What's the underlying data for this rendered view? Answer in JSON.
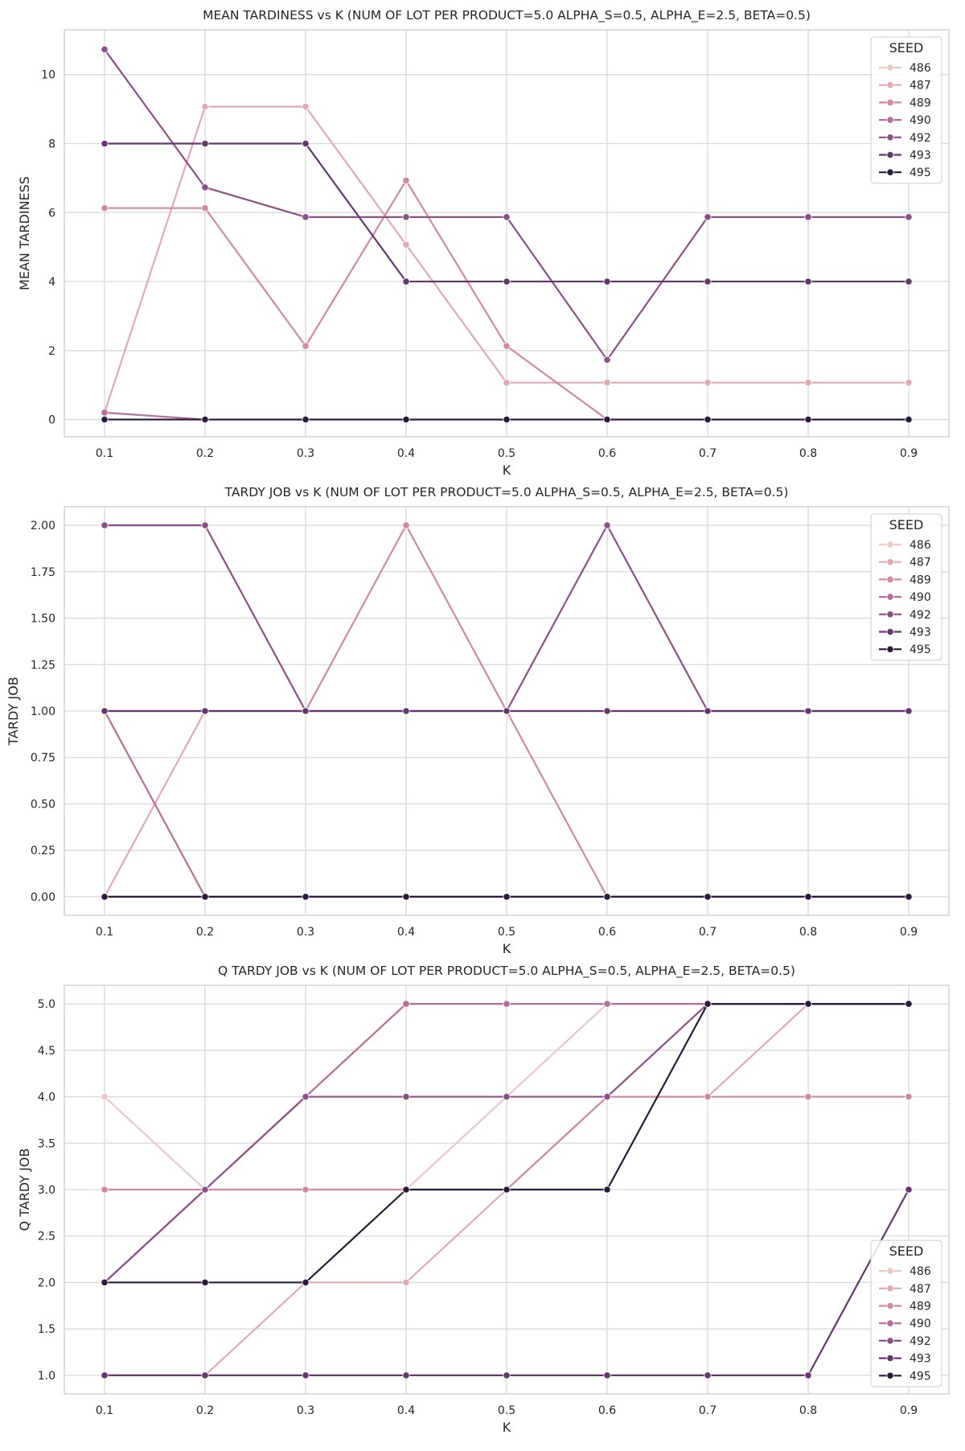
{
  "legend_title": "SEED",
  "series_colors": [
    "#ebc8c4",
    "#e0aab0",
    "#cf8aa0",
    "#b46e98",
    "#8c5088",
    "#64376e",
    "#2a1b3e"
  ],
  "chart_data": [
    {
      "type": "line",
      "title": "MEAN TARDINESS vs K (NUM OF LOT PER PRODUCT=5.0 ALPHA_S=0.5, ALPHA_E=2.5, BETA=0.5)",
      "xlabel": "K",
      "ylabel": "MEAN TARDINESS",
      "x": [
        0.1,
        0.2,
        0.3,
        0.4,
        0.5,
        0.6,
        0.7,
        0.8,
        0.9
      ],
      "x_ticks": [
        "0.1",
        "0.2",
        "0.3",
        "0.4",
        "0.5",
        "0.6",
        "0.7",
        "0.8",
        "0.9"
      ],
      "xlim": [
        0.06,
        0.94
      ],
      "y_ticks": [
        "0",
        "2",
        "4",
        "6",
        "8",
        "10"
      ],
      "ylim": [
        -0.5,
        11.3
      ],
      "grid": true,
      "legend_position": "top-right",
      "series": [
        {
          "name": "486",
          "values": [
            0,
            0,
            0,
            0,
            0,
            0,
            0,
            0,
            0
          ]
        },
        {
          "name": "487",
          "values": [
            0.2,
            9.07,
            9.07,
            5.07,
            1.07,
            1.07,
            1.07,
            1.07,
            1.07
          ]
        },
        {
          "name": "489",
          "values": [
            6.13,
            6.13,
            2.13,
            6.93,
            2.13,
            0,
            0,
            0,
            0
          ]
        },
        {
          "name": "490",
          "values": [
            0.2,
            0,
            0,
            0,
            0,
            0,
            0,
            0,
            0
          ]
        },
        {
          "name": "492",
          "values": [
            10.73,
            6.73,
            5.87,
            5.87,
            5.87,
            1.73,
            5.87,
            5.87,
            5.87
          ]
        },
        {
          "name": "493",
          "values": [
            8,
            8,
            8,
            4,
            4,
            4,
            4,
            4,
            4
          ]
        },
        {
          "name": "495",
          "values": [
            0,
            0,
            0,
            0,
            0,
            0,
            0,
            0,
            0
          ]
        }
      ]
    },
    {
      "type": "line",
      "title": "TARDY JOB vs K (NUM OF LOT PER PRODUCT=5.0 ALPHA_S=0.5, ALPHA_E=2.5, BETA=0.5)",
      "xlabel": "K",
      "ylabel": "TARDY JOB",
      "x": [
        0.1,
        0.2,
        0.3,
        0.4,
        0.5,
        0.6,
        0.7,
        0.8,
        0.9
      ],
      "x_ticks": [
        "0.1",
        "0.2",
        "0.3",
        "0.4",
        "0.5",
        "0.6",
        "0.7",
        "0.8",
        "0.9"
      ],
      "xlim": [
        0.06,
        0.94
      ],
      "y_ticks": [
        "0.00",
        "0.25",
        "0.50",
        "0.75",
        "1.00",
        "1.25",
        "1.50",
        "1.75",
        "2.00"
      ],
      "ylim": [
        -0.1,
        2.1
      ],
      "grid": true,
      "legend_position": "top-right",
      "series": [
        {
          "name": "486",
          "values": [
            0,
            0,
            0,
            0,
            0,
            0,
            0,
            0,
            0
          ]
        },
        {
          "name": "487",
          "values": [
            0,
            1,
            1,
            1,
            1,
            1,
            1,
            1,
            1
          ]
        },
        {
          "name": "489",
          "values": [
            1,
            1,
            1,
            2,
            1,
            0,
            0,
            0,
            0
          ]
        },
        {
          "name": "490",
          "values": [
            1,
            0,
            0,
            0,
            0,
            0,
            0,
            0,
            0
          ]
        },
        {
          "name": "492",
          "values": [
            2,
            2,
            1,
            1,
            1,
            2,
            1,
            1,
            1
          ]
        },
        {
          "name": "493",
          "values": [
            1,
            1,
            1,
            1,
            1,
            1,
            1,
            1,
            1
          ]
        },
        {
          "name": "495",
          "values": [
            0,
            0,
            0,
            0,
            0,
            0,
            0,
            0,
            0
          ]
        }
      ]
    },
    {
      "type": "line",
      "title": "Q TARDY JOB vs K (NUM OF LOT PER PRODUCT=5.0 ALPHA_S=0.5, ALPHA_E=2.5, BETA=0.5)",
      "xlabel": "K",
      "ylabel": "Q TARDY JOB",
      "x": [
        0.1,
        0.2,
        0.3,
        0.4,
        0.5,
        0.6,
        0.7,
        0.8,
        0.9
      ],
      "x_ticks": [
        "0.1",
        "0.2",
        "0.3",
        "0.4",
        "0.5",
        "0.6",
        "0.7",
        "0.8",
        "0.9"
      ],
      "xlim": [
        0.06,
        0.94
      ],
      "y_ticks": [
        "1.0",
        "1.5",
        "2.0",
        "2.5",
        "3.0",
        "3.5",
        "4.0",
        "4.5",
        "5.0"
      ],
      "ylim": [
        0.8,
        5.2
      ],
      "grid": true,
      "legend_position": "lower-right",
      "series": [
        {
          "name": "486",
          "values": [
            4,
            3,
            3,
            3,
            4,
            5,
            5,
            5,
            5
          ]
        },
        {
          "name": "487",
          "values": [
            1,
            1,
            2,
            2,
            3,
            4,
            4,
            5,
            5
          ]
        },
        {
          "name": "489",
          "values": [
            3,
            3,
            3,
            3,
            3,
            4,
            4,
            4,
            4
          ]
        },
        {
          "name": "490",
          "values": [
            2,
            3,
            4,
            5,
            5,
            5,
            5,
            5,
            5
          ]
        },
        {
          "name": "492",
          "values": [
            2,
            3,
            4,
            4,
            4,
            4,
            5,
            5,
            5
          ]
        },
        {
          "name": "493",
          "values": [
            1,
            1,
            1,
            1,
            1,
            1,
            1,
            1,
            3
          ]
        },
        {
          "name": "495",
          "values": [
            2,
            2,
            2,
            3,
            3,
            3,
            5,
            5,
            5
          ]
        }
      ]
    }
  ]
}
